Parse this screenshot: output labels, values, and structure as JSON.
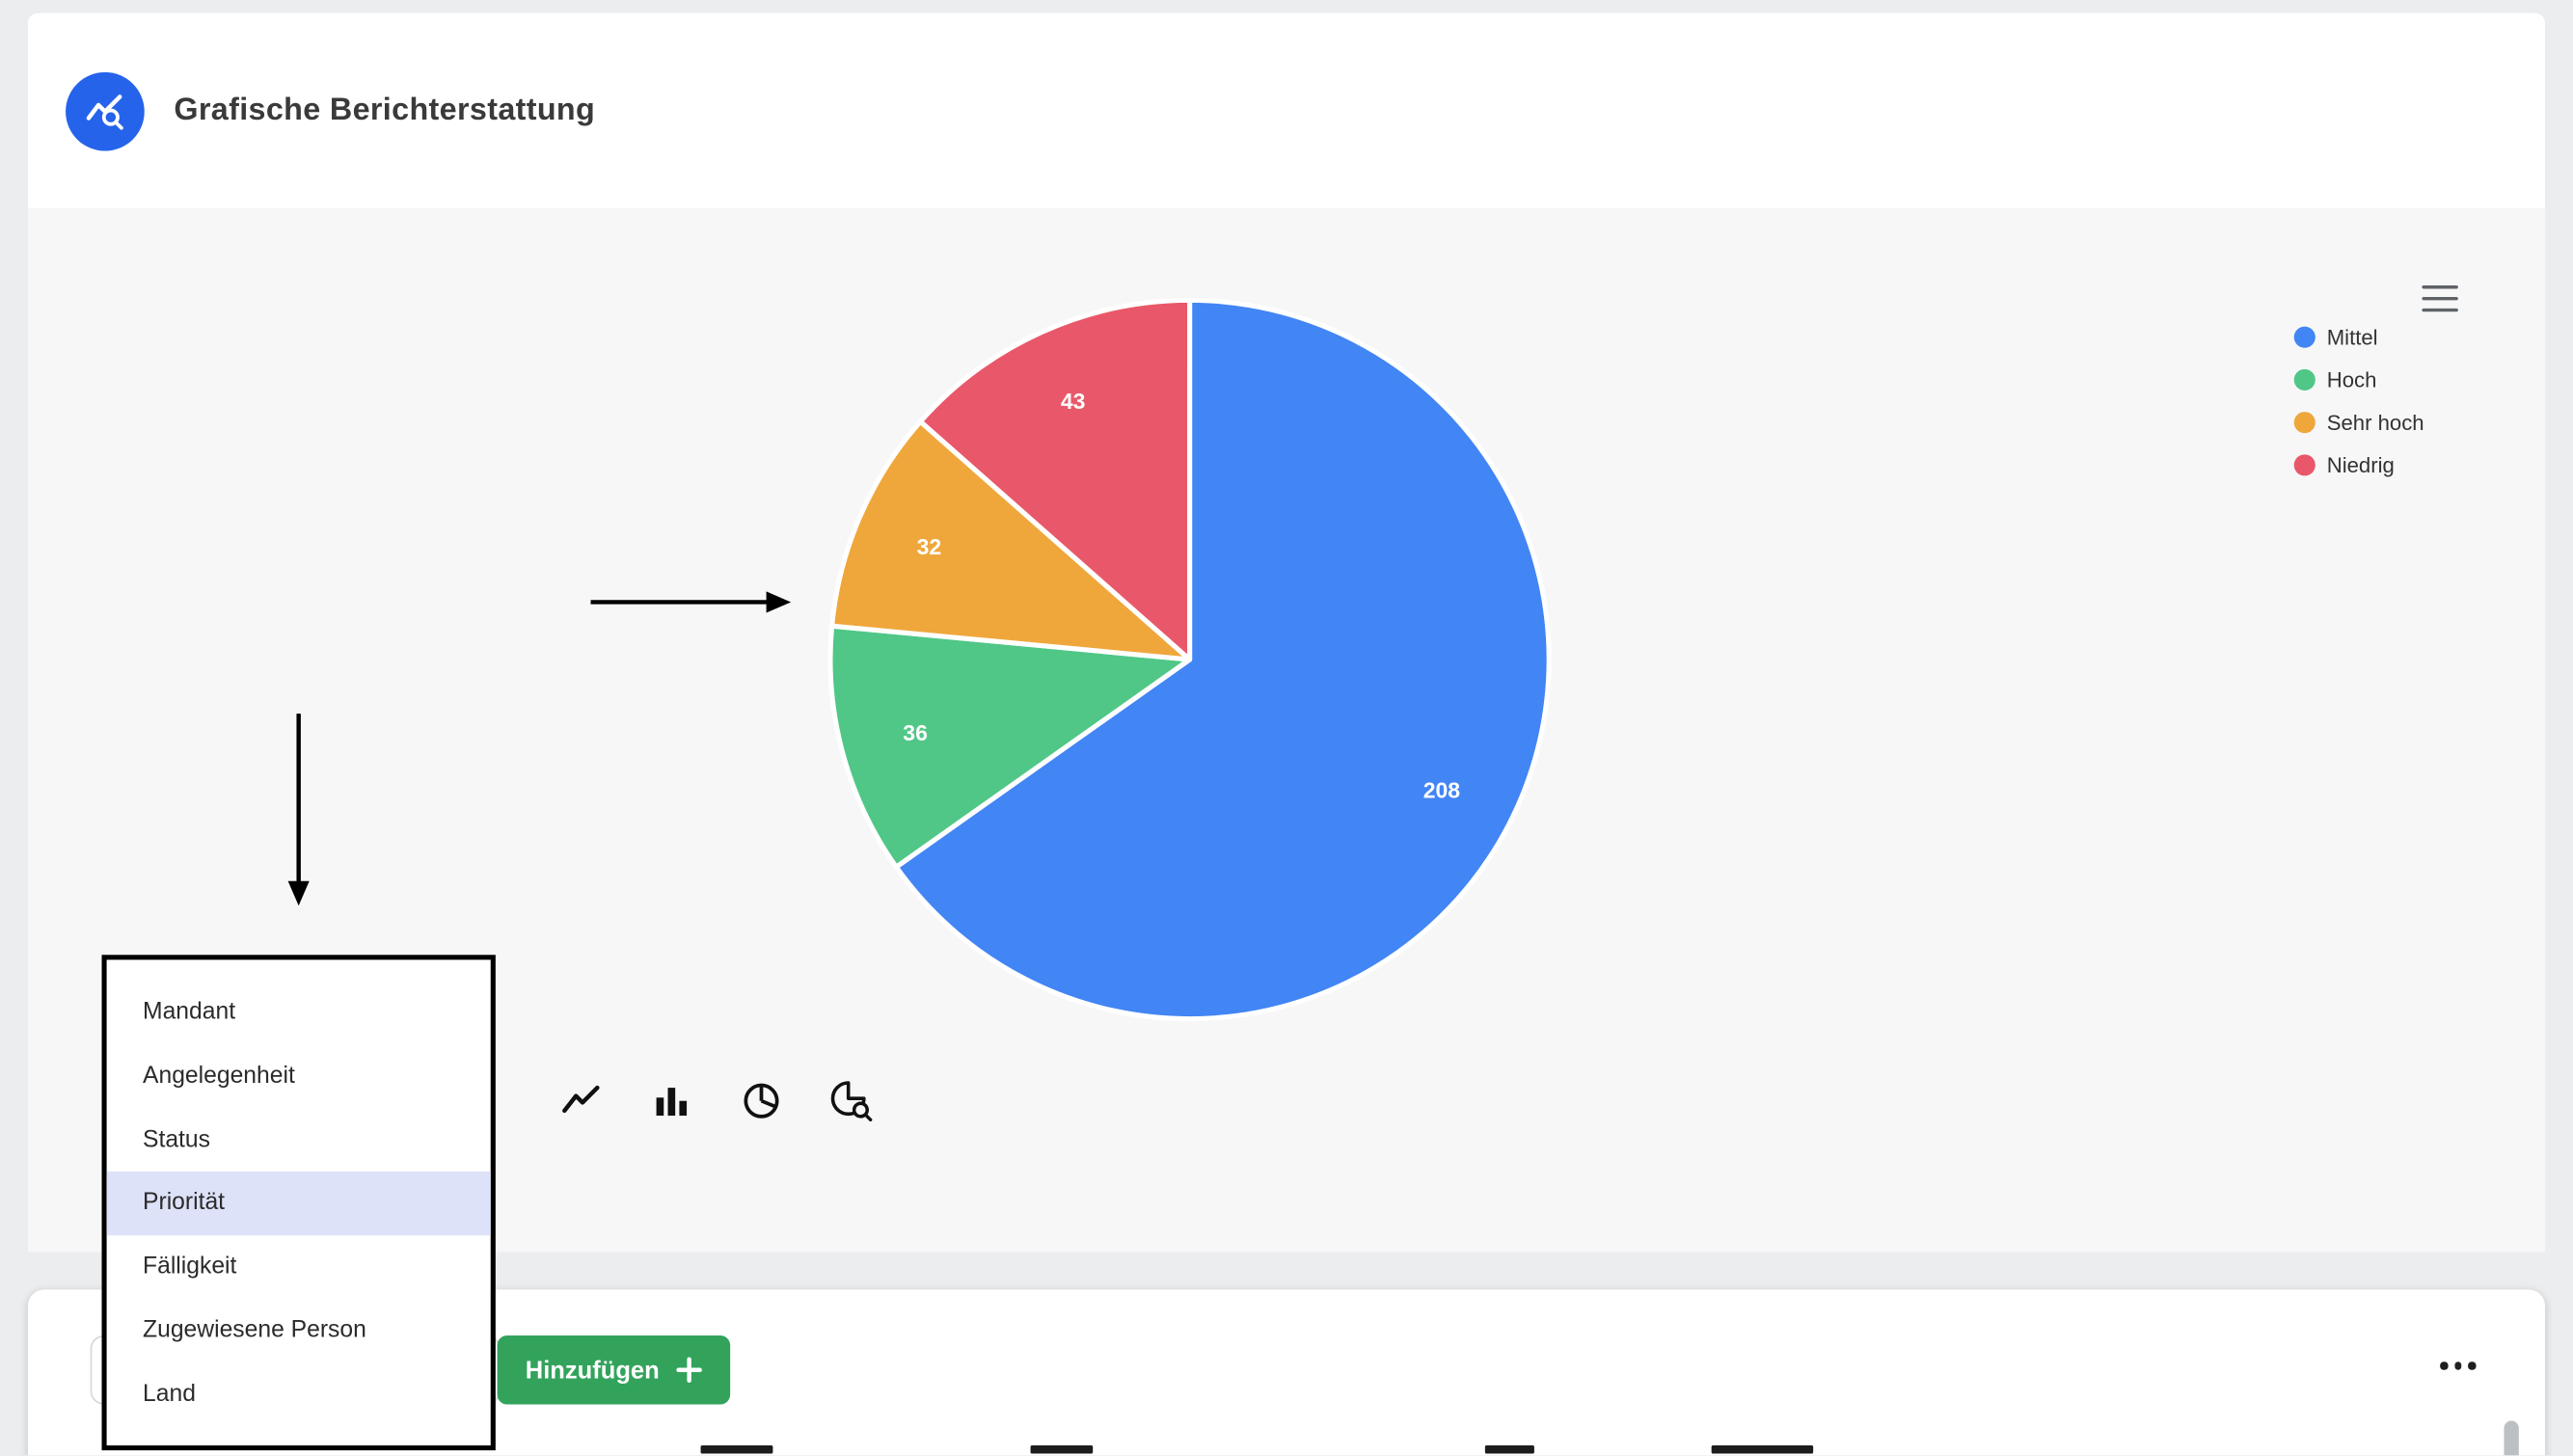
{
  "header": {
    "title": "Grafische Berichterstattung",
    "logo_icon": "line-chart-search-icon"
  },
  "chart_data": {
    "type": "pie",
    "title": "",
    "labels": [
      "Mittel",
      "Hoch",
      "Sehr hoch",
      "Niedrig"
    ],
    "values": [
      208,
      36,
      32,
      43
    ],
    "colors": [
      "#4285F4",
      "#50C787",
      "#EFA73C",
      "#E9586A"
    ],
    "data_labels": [
      "208",
      "36",
      "32",
      "43"
    ],
    "start_angle_deg": 0,
    "direction": "clockwise",
    "legend_position": "right"
  },
  "legend": {
    "items": [
      {
        "label": "Mittel",
        "color": "#4285F4"
      },
      {
        "label": "Hoch",
        "color": "#50C787"
      },
      {
        "label": "Sehr hoch",
        "color": "#EFA73C"
      },
      {
        "label": "Niedrig",
        "color": "#E9586A"
      }
    ]
  },
  "chart_toolbar": {
    "menu_icon": "hamburger-menu-icon",
    "type_icons": [
      "line-chart-icon",
      "bar-chart-icon",
      "pie-chart-icon",
      "pie-search-icon"
    ]
  },
  "dropdown": {
    "items": [
      {
        "label": "Mandant",
        "selected": false
      },
      {
        "label": "Angelegenheit",
        "selected": false
      },
      {
        "label": "Status",
        "selected": false
      },
      {
        "label": "Priorität",
        "selected": true
      },
      {
        "label": "Fälligkeit",
        "selected": false
      },
      {
        "label": "Zugewiesene Person",
        "selected": false
      },
      {
        "label": "Land",
        "selected": false
      }
    ]
  },
  "footer": {
    "add_button_label": "Hinzufügen",
    "add_button_icon": "plus-icon",
    "more_icon": "ellipsis-icon"
  },
  "colors": {
    "logo_blue": "#2563EB",
    "button_green": "#33A35C",
    "dropdown_highlight": "#DDE2F8",
    "panel_gray": "#F7F7F8"
  }
}
